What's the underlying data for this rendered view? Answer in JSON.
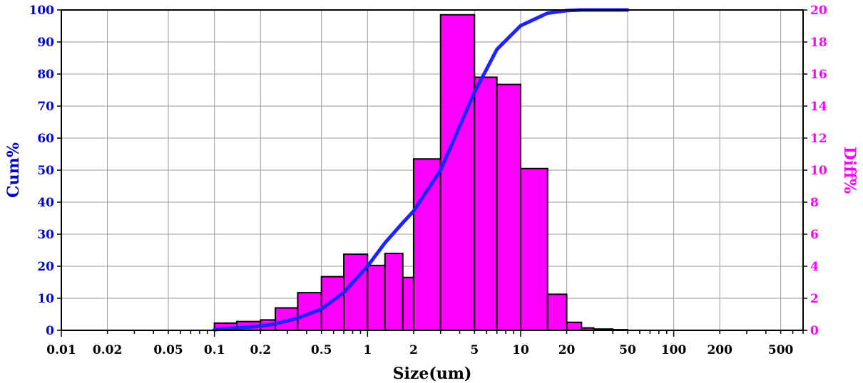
{
  "chart_data": {
    "type": "bar",
    "title": "",
    "xlabel": "Size(um)",
    "ylabel": "Cum%",
    "y2label": "Diff%",
    "x_scale": "log",
    "xlim": [
      0.01,
      700
    ],
    "ylim": [
      0,
      100
    ],
    "y2lim": [
      0,
      20
    ],
    "grid": true,
    "legend": "none",
    "x_ticks": [
      {
        "value": 0.01,
        "label": "0.01"
      },
      {
        "value": 0.02,
        "label": "0.02"
      },
      {
        "value": 0.05,
        "label": "0.05"
      },
      {
        "value": 0.1,
        "label": "0.1"
      },
      {
        "value": 0.2,
        "label": "0.2"
      },
      {
        "value": 0.5,
        "label": "0.5"
      },
      {
        "value": 1,
        "label": "1"
      },
      {
        "value": 2,
        "label": "2"
      },
      {
        "value": 5,
        "label": "5"
      },
      {
        "value": 10,
        "label": "10"
      },
      {
        "value": 20,
        "label": "20"
      },
      {
        "value": 50,
        "label": "50"
      },
      {
        "value": 100,
        "label": "100"
      },
      {
        "value": 200,
        "label": "200"
      },
      {
        "value": 500,
        "label": "500"
      }
    ],
    "y_ticks": [
      "0",
      "10",
      "20",
      "30",
      "40",
      "50",
      "60",
      "70",
      "80",
      "90",
      "100"
    ],
    "y2_ticks": [
      "0",
      "2",
      "4",
      "6",
      "8",
      "10",
      "12",
      "14",
      "16",
      "18",
      "20"
    ],
    "colors": {
      "cumulative": "#1f24ff",
      "bars": "#ff00ff",
      "bar_edge": "#000000",
      "left_axis_text": "#0000cc",
      "right_axis_text": "#ff00ff",
      "grid": "#9a9a9a"
    },
    "series": [
      {
        "kind": "histogram",
        "axis": "right",
        "bins": [
          {
            "from": 0.1,
            "to": 0.14,
            "value": 0.45
          },
          {
            "from": 0.14,
            "to": 0.2,
            "value": 0.55
          },
          {
            "from": 0.2,
            "to": 0.25,
            "value": 0.65
          },
          {
            "from": 0.25,
            "to": 0.35,
            "value": 1.4
          },
          {
            "from": 0.35,
            "to": 0.5,
            "value": 2.35
          },
          {
            "from": 0.5,
            "to": 0.7,
            "value": 3.35
          },
          {
            "from": 0.7,
            "to": 1.0,
            "value": 4.75
          },
          {
            "from": 1.0,
            "to": 1.3,
            "value": 4.05
          },
          {
            "from": 1.3,
            "to": 1.7,
            "value": 4.8
          },
          {
            "from": 1.7,
            "to": 2.0,
            "value": 3.3
          },
          {
            "from": 2.0,
            "to": 3.0,
            "value": 10.7
          },
          {
            "from": 3.0,
            "to": 5.0,
            "value": 19.7
          },
          {
            "from": 5.0,
            "to": 7.0,
            "value": 15.8
          },
          {
            "from": 7.0,
            "to": 10.0,
            "value": 15.35
          },
          {
            "from": 10.0,
            "to": 15.0,
            "value": 10.1
          },
          {
            "from": 15.0,
            "to": 20.0,
            "value": 2.25
          },
          {
            "from": 20.0,
            "to": 25.0,
            "value": 0.5
          },
          {
            "from": 25.0,
            "to": 30.0,
            "value": 0.15
          },
          {
            "from": 30.0,
            "to": 40.0,
            "value": 0.08
          },
          {
            "from": 40.0,
            "to": 50.0,
            "value": 0.04
          }
        ]
      },
      {
        "kind": "line",
        "axis": "left",
        "x": [
          0.1,
          0.14,
          0.2,
          0.25,
          0.35,
          0.5,
          0.7,
          1.0,
          1.3,
          1.7,
          2.0,
          3.0,
          5.0,
          7.0,
          10.0,
          15.0,
          20.0,
          25.0,
          30.0,
          40.0,
          50.0
        ],
        "y": [
          0.2,
          0.7,
          1.3,
          2.0,
          3.8,
          6.6,
          11.8,
          20.0,
          27.3,
          33.6,
          37.2,
          50.0,
          74.3,
          87.7,
          95.1,
          99.0,
          99.8,
          100.0,
          100.0,
          100.0,
          100.0
        ]
      }
    ]
  }
}
